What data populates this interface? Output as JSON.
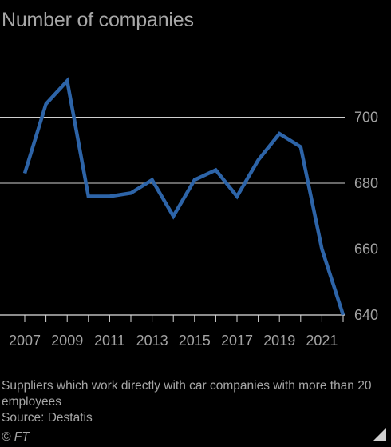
{
  "header": {
    "title": "Number of companies"
  },
  "footer": {
    "note": "Suppliers which work directly with car companies with more than 20 employees",
    "source": "Source: Destatis",
    "copyright": "© FT"
  },
  "colors": {
    "background": "#000000",
    "line": "#2d64a8",
    "grid": "#d0d0d0",
    "text": "#a7a7a7"
  },
  "chart_data": {
    "type": "line",
    "title": "Number of companies",
    "x": [
      2007,
      2008,
      2009,
      2010,
      2011,
      2012,
      2013,
      2014,
      2015,
      2016,
      2017,
      2018,
      2019,
      2020,
      2021,
      2022
    ],
    "series": [
      {
        "values": [
          683,
          704,
          711,
          676,
          676,
          677,
          681,
          670,
          681,
          684,
          676,
          687,
          695,
          691,
          660,
          640
        ]
      }
    ],
    "x_tick_labels": [
      "2007",
      "2009",
      "2011",
      "2013",
      "2015",
      "2017",
      "2019",
      "2021"
    ],
    "y_ticks": [
      640,
      660,
      680,
      700
    ],
    "ylim": [
      640,
      720
    ],
    "y_axis_position": "right",
    "grid": true,
    "legend": "none"
  }
}
